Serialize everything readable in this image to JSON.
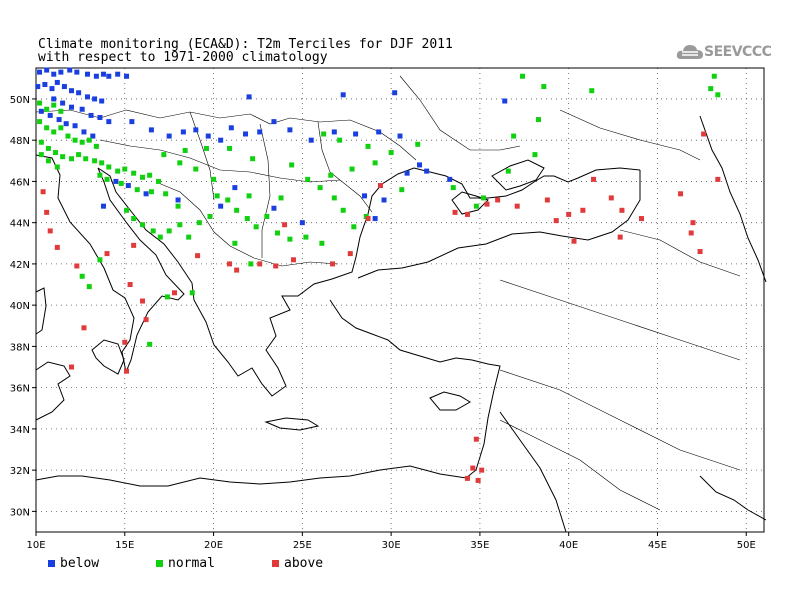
{
  "title": {
    "line1": "Climate monitoring (ECA&D): T2m Terciles for DJF 2011",
    "line2": "with respect to 1971-2000 climatology"
  },
  "logo": {
    "text": "SEEVCCC",
    "icon": "cloud-icon"
  },
  "map": {
    "lon_range": [
      10,
      51
    ],
    "lat_range": [
      29,
      51.5
    ],
    "lon_ticks": [
      10,
      15,
      20,
      25,
      30,
      35,
      40,
      45,
      50
    ],
    "lon_tick_labels": [
      "10E",
      "15E",
      "20E",
      "25E",
      "30E",
      "35E",
      "40E",
      "45E",
      "50E"
    ],
    "lat_ticks": [
      30,
      32,
      34,
      36,
      38,
      40,
      42,
      44,
      46,
      48,
      50
    ],
    "lat_tick_labels": [
      "30N",
      "32N",
      "34N",
      "36N",
      "38N",
      "40N",
      "42N",
      "44N",
      "46N",
      "48N",
      "50N"
    ],
    "grid": true
  },
  "legend": [
    {
      "label": "below",
      "color": "#1a3fe0"
    },
    {
      "label": "normal",
      "color": "#10d010"
    },
    {
      "label": "above",
      "color": "#e03a3a"
    }
  ],
  "stations": {
    "below": [
      [
        10.2,
        51.3
      ],
      [
        10.6,
        51.4
      ],
      [
        11.0,
        51.2
      ],
      [
        11.4,
        51.3
      ],
      [
        11.9,
        51.4
      ],
      [
        12.3,
        51.3
      ],
      [
        12.9,
        51.2
      ],
      [
        13.4,
        51.1
      ],
      [
        13.8,
        51.2
      ],
      [
        14.1,
        51.1
      ],
      [
        14.6,
        51.2
      ],
      [
        15.1,
        51.1
      ],
      [
        10.1,
        50.6
      ],
      [
        10.5,
        50.7
      ],
      [
        10.9,
        50.5
      ],
      [
        11.2,
        50.8
      ],
      [
        11.6,
        50.6
      ],
      [
        12.0,
        50.4
      ],
      [
        12.4,
        50.3
      ],
      [
        12.9,
        50.1
      ],
      [
        13.3,
        50.0
      ],
      [
        13.7,
        49.9
      ],
      [
        11.0,
        50.0
      ],
      [
        11.5,
        49.8
      ],
      [
        12.0,
        49.6
      ],
      [
        12.6,
        49.5
      ],
      [
        13.1,
        49.2
      ],
      [
        13.6,
        49.1
      ],
      [
        14.1,
        48.9
      ],
      [
        10.3,
        49.4
      ],
      [
        10.8,
        49.2
      ],
      [
        11.3,
        49.0
      ],
      [
        11.7,
        48.8
      ],
      [
        12.2,
        48.7
      ],
      [
        12.7,
        48.4
      ],
      [
        13.2,
        48.2
      ],
      [
        15.4,
        48.9
      ],
      [
        16.5,
        48.5
      ],
      [
        17.5,
        48.2
      ],
      [
        18.3,
        48.4
      ],
      [
        19.0,
        48.5
      ],
      [
        19.7,
        48.2
      ],
      [
        20.4,
        48.0
      ],
      [
        21.0,
        48.6
      ],
      [
        21.8,
        48.3
      ],
      [
        22.6,
        48.4
      ],
      [
        23.4,
        48.9
      ],
      [
        24.3,
        48.5
      ],
      [
        25.5,
        48.0
      ],
      [
        26.8,
        48.4
      ],
      [
        28.0,
        48.3
      ],
      [
        29.3,
        48.4
      ],
      [
        30.5,
        48.2
      ],
      [
        22.0,
        50.1
      ],
      [
        27.3,
        50.2
      ],
      [
        30.2,
        50.3
      ],
      [
        31.6,
        46.8
      ],
      [
        32.0,
        46.5
      ],
      [
        30.9,
        46.4
      ],
      [
        28.5,
        45.3
      ],
      [
        29.6,
        45.1
      ],
      [
        29.1,
        44.2
      ],
      [
        25.0,
        44.0
      ],
      [
        23.4,
        44.7
      ],
      [
        18.0,
        45.1
      ],
      [
        14.5,
        46.0
      ],
      [
        15.2,
        45.8
      ],
      [
        16.2,
        45.4
      ],
      [
        13.8,
        44.8
      ],
      [
        20.4,
        44.8
      ],
      [
        21.2,
        45.7
      ],
      [
        33.3,
        46.1
      ],
      [
        36.4,
        49.9
      ]
    ],
    "normal": [
      [
        10.2,
        49.8
      ],
      [
        10.6,
        49.5
      ],
      [
        11.0,
        49.7
      ],
      [
        11.4,
        49.4
      ],
      [
        10.2,
        48.9
      ],
      [
        10.6,
        48.6
      ],
      [
        11.0,
        48.4
      ],
      [
        11.4,
        48.6
      ],
      [
        11.8,
        48.2
      ],
      [
        12.2,
        48.0
      ],
      [
        12.6,
        47.9
      ],
      [
        13.0,
        48.0
      ],
      [
        13.4,
        47.7
      ],
      [
        10.3,
        47.9
      ],
      [
        10.7,
        47.6
      ],
      [
        11.1,
        47.4
      ],
      [
        11.5,
        47.2
      ],
      [
        12.0,
        47.1
      ],
      [
        12.4,
        47.3
      ],
      [
        12.8,
        47.1
      ],
      [
        13.3,
        47.0
      ],
      [
        13.7,
        46.9
      ],
      [
        14.1,
        46.7
      ],
      [
        14.6,
        46.5
      ],
      [
        15.0,
        46.6
      ],
      [
        15.5,
        46.4
      ],
      [
        16.0,
        46.2
      ],
      [
        16.4,
        46.3
      ],
      [
        16.9,
        46.0
      ],
      [
        10.3,
        47.3
      ],
      [
        10.7,
        47.0
      ],
      [
        11.2,
        46.7
      ],
      [
        13.6,
        46.3
      ],
      [
        14.0,
        46.1
      ],
      [
        14.8,
        45.9
      ],
      [
        15.7,
        45.6
      ],
      [
        16.5,
        45.5
      ],
      [
        17.3,
        45.4
      ],
      [
        18.0,
        44.8
      ],
      [
        15.1,
        44.6
      ],
      [
        15.5,
        44.2
      ],
      [
        16.0,
        43.9
      ],
      [
        16.6,
        43.6
      ],
      [
        17.0,
        43.3
      ],
      [
        17.5,
        43.6
      ],
      [
        18.1,
        43.9
      ],
      [
        18.6,
        43.3
      ],
      [
        19.2,
        44.0
      ],
      [
        19.8,
        44.3
      ],
      [
        20.2,
        45.3
      ],
      [
        20.8,
        45.1
      ],
      [
        21.3,
        44.6
      ],
      [
        21.9,
        44.2
      ],
      [
        22.4,
        43.8
      ],
      [
        23.0,
        44.3
      ],
      [
        23.6,
        43.5
      ],
      [
        24.3,
        43.2
      ],
      [
        25.2,
        43.3
      ],
      [
        26.1,
        43.0
      ],
      [
        25.3,
        46.1
      ],
      [
        26.0,
        45.7
      ],
      [
        26.8,
        45.2
      ],
      [
        27.3,
        44.6
      ],
      [
        27.9,
        43.8
      ],
      [
        28.6,
        44.3
      ],
      [
        23.8,
        45.2
      ],
      [
        22.0,
        45.3
      ],
      [
        20.0,
        46.1
      ],
      [
        19.0,
        46.6
      ],
      [
        18.1,
        46.9
      ],
      [
        17.2,
        47.3
      ],
      [
        18.4,
        47.5
      ],
      [
        19.6,
        47.6
      ],
      [
        20.9,
        47.6
      ],
      [
        22.2,
        47.1
      ],
      [
        24.4,
        46.8
      ],
      [
        26.6,
        46.3
      ],
      [
        27.8,
        46.6
      ],
      [
        29.1,
        46.9
      ],
      [
        30.6,
        45.6
      ],
      [
        26.2,
        48.3
      ],
      [
        27.1,
        48.0
      ],
      [
        28.7,
        47.7
      ],
      [
        30.0,
        47.4
      ],
      [
        31.5,
        47.8
      ],
      [
        33.5,
        45.7
      ],
      [
        34.8,
        44.8
      ],
      [
        35.2,
        45.2
      ],
      [
        36.6,
        46.5
      ],
      [
        38.1,
        47.3
      ],
      [
        36.9,
        48.2
      ],
      [
        38.3,
        49.0
      ],
      [
        38.6,
        50.6
      ],
      [
        37.4,
        51.1
      ],
      [
        41.3,
        50.4
      ],
      [
        48.2,
        51.1
      ],
      [
        48.4,
        50.2
      ],
      [
        48.0,
        50.5
      ],
      [
        13.6,
        42.2
      ],
      [
        13.0,
        40.9
      ],
      [
        12.6,
        41.4
      ],
      [
        17.4,
        40.4
      ],
      [
        16.4,
        38.1
      ],
      [
        18.8,
        40.6
      ],
      [
        22.1,
        42.0
      ],
      [
        21.2,
        43.0
      ]
    ],
    "above": [
      [
        10.4,
        45.5
      ],
      [
        10.6,
        44.5
      ],
      [
        10.8,
        43.6
      ],
      [
        11.2,
        42.8
      ],
      [
        12.3,
        41.9
      ],
      [
        12.7,
        38.9
      ],
      [
        12.0,
        37.0
      ],
      [
        14.0,
        42.5
      ],
      [
        15.3,
        41.0
      ],
      [
        16.2,
        39.3
      ],
      [
        15.0,
        38.2
      ],
      [
        15.1,
        36.8
      ],
      [
        16.0,
        40.2
      ],
      [
        17.8,
        40.6
      ],
      [
        19.1,
        42.4
      ],
      [
        20.9,
        42.0
      ],
      [
        21.3,
        41.7
      ],
      [
        22.6,
        42.0
      ],
      [
        23.5,
        41.9
      ],
      [
        24.5,
        42.2
      ],
      [
        26.7,
        42.0
      ],
      [
        27.7,
        42.5
      ],
      [
        28.7,
        44.2
      ],
      [
        29.4,
        45.8
      ],
      [
        34.3,
        44.4
      ],
      [
        35.4,
        44.9
      ],
      [
        36.0,
        45.1
      ],
      [
        37.1,
        44.8
      ],
      [
        38.8,
        45.1
      ],
      [
        39.3,
        44.1
      ],
      [
        40.0,
        44.4
      ],
      [
        40.8,
        44.6
      ],
      [
        41.4,
        46.1
      ],
      [
        42.4,
        45.2
      ],
      [
        43.0,
        44.6
      ],
      [
        44.1,
        44.2
      ],
      [
        42.9,
        43.3
      ],
      [
        40.3,
        43.1
      ],
      [
        46.9,
        43.5
      ],
      [
        47.4,
        42.6
      ],
      [
        46.3,
        45.4
      ],
      [
        47.6,
        48.3
      ],
      [
        48.4,
        46.1
      ],
      [
        47.0,
        44.0
      ],
      [
        33.6,
        44.5
      ],
      [
        34.8,
        33.5
      ],
      [
        34.6,
        32.1
      ],
      [
        34.9,
        31.5
      ],
      [
        34.3,
        31.6
      ],
      [
        35.1,
        32.0
      ],
      [
        24.0,
        43.9
      ],
      [
        15.5,
        42.9
      ]
    ]
  }
}
